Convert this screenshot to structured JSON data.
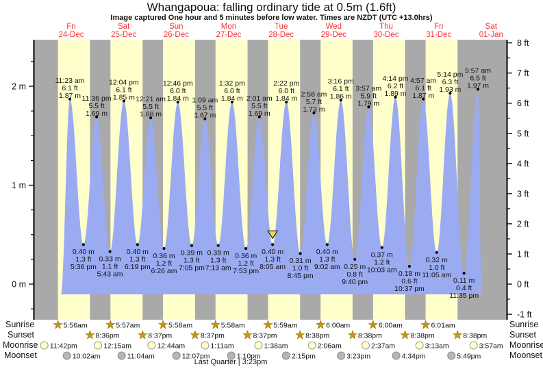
{
  "header": {
    "title": "Whangapoua: falling  ordinary tide at 0.5m (1.6ft)",
    "subtitle": "Image captured One hour and 5 minutes before low water. Times are NZDT (UTC +13.0hrs)"
  },
  "row_labels": {
    "sunrise": "Sunrise",
    "sunset": "Sunset",
    "moonrise": "Moonrise",
    "moonset": "Moonset"
  },
  "footer": {
    "moon_phase": "Last Quarter | 3:23pm"
  },
  "chart_data": {
    "type": "area",
    "title": "Whangapoua: falling  ordinary tide at 0.5m (1.6ft)",
    "subtitle": "Image captured One hour and 5 minutes before low water. Times are NZDT (UTC +13.0hrs)",
    "time_reference": "t = hours since 24-Dec 00:00",
    "x_axis": {
      "days": [
        {
          "dow": "Fri",
          "date": "24-Dec"
        },
        {
          "dow": "Sat",
          "date": "25-Dec"
        },
        {
          "dow": "Sun",
          "date": "26-Dec"
        },
        {
          "dow": "Mon",
          "date": "27-Dec"
        },
        {
          "dow": "Tue",
          "date": "28-Dec"
        },
        {
          "dow": "Wed",
          "date": "29-Dec"
        },
        {
          "dow": "Thu",
          "date": "30-Dec"
        },
        {
          "dow": "Fri",
          "date": "31-Dec"
        },
        {
          "dow": "Sat",
          "date": "01-Jan"
        }
      ]
    },
    "y_axis_left": {
      "unit": "m",
      "ticks": [
        2,
        1,
        0
      ],
      "tick_labels": [
        "2 m",
        "1 m",
        "0 m"
      ]
    },
    "y_axis_right": {
      "unit": "ft",
      "ticks": [
        8,
        7,
        6,
        5,
        4,
        3,
        2,
        1,
        0,
        -1
      ],
      "tick_labels": [
        "8 ft",
        "7 ft",
        "6 ft",
        "5 ft",
        "4 ft",
        "3 ft",
        "2 ft",
        "1 ft",
        "0 ft",
        "-1 ft"
      ]
    },
    "events": [
      {
        "kind": "high",
        "t": 11.38,
        "m": 1.87,
        "lines": [
          "11:23 am",
          "6.1 ft",
          "1.87 m"
        ]
      },
      {
        "kind": "low",
        "t": 17.6,
        "m": 0.4,
        "lines": [
          "0.40 m",
          "1.3 ft",
          "5:36 pm"
        ]
      },
      {
        "kind": "high",
        "t": 23.6,
        "m": 1.69,
        "lines": [
          "11:36 pm",
          "5.5 ft",
          "1.69 m"
        ]
      },
      {
        "kind": "low",
        "t": 29.72,
        "m": 0.33,
        "lines": [
          "0.33 m",
          "1.1 ft",
          "5:43 am"
        ]
      },
      {
        "kind": "high",
        "t": 36.07,
        "m": 1.85,
        "lines": [
          "12:04 pm",
          "6.1 ft",
          "1.85 m"
        ]
      },
      {
        "kind": "low",
        "t": 42.32,
        "m": 0.4,
        "lines": [
          "0.40 m",
          "1.3 ft",
          "6:19 pm"
        ]
      },
      {
        "kind": "high",
        "t": 48.35,
        "m": 1.68,
        "lines": [
          "12:21 am",
          "5.5 ft",
          "1.68 m"
        ]
      },
      {
        "kind": "low",
        "t": 54.43,
        "m": 0.36,
        "lines": [
          "0.36 m",
          "1.2 ft",
          "6:26 am"
        ]
      },
      {
        "kind": "high",
        "t": 60.77,
        "m": 1.84,
        "lines": [
          "12:46 pm",
          "6.0 ft",
          "1.84 m"
        ]
      },
      {
        "kind": "low",
        "t": 67.08,
        "m": 0.39,
        "lines": [
          "0.39 m",
          "1.3 ft",
          "7:05 pm"
        ]
      },
      {
        "kind": "high",
        "t": 73.15,
        "m": 1.67,
        "lines": [
          "1:09 am",
          "5.5 ft",
          "1.67 m"
        ]
      },
      {
        "kind": "low",
        "t": 79.22,
        "m": 0.39,
        "lines": [
          "0.39 m",
          "1.3 ft",
          "7:13 am"
        ]
      },
      {
        "kind": "high",
        "t": 85.53,
        "m": 1.84,
        "lines": [
          "1:32 pm",
          "6.0 ft",
          "1.84 m"
        ]
      },
      {
        "kind": "low",
        "t": 91.88,
        "m": 0.36,
        "lines": [
          "0.36 m",
          "1.2 ft",
          "7:53 pm"
        ]
      },
      {
        "kind": "high",
        "t": 98.02,
        "m": 1.69,
        "lines": [
          "2:01 am",
          "5.5 ft",
          "1.69 m"
        ]
      },
      {
        "kind": "low",
        "t": 104.08,
        "m": 0.4,
        "lines": [
          "0.40 m",
          "1.3 ft",
          "8:05 am"
        ],
        "current_marker": true
      },
      {
        "kind": "high",
        "t": 110.37,
        "m": 1.84,
        "lines": [
          "2:22 pm",
          "6.0 ft",
          "1.84 m"
        ]
      },
      {
        "kind": "low",
        "t": 116.75,
        "m": 0.31,
        "lines": [
          "0.31 m",
          "1.0 ft",
          "8:45 pm"
        ]
      },
      {
        "kind": "high",
        "t": 122.97,
        "m": 1.73,
        "lines": [
          "2:58 am",
          "5.7 ft",
          "1.73 m"
        ]
      },
      {
        "kind": "low",
        "t": 129.03,
        "m": 0.4,
        "lines": [
          "0.40 m",
          "1.3 ft",
          "9:02 am"
        ]
      },
      {
        "kind": "high",
        "t": 135.27,
        "m": 1.86,
        "lines": [
          "3:16 pm",
          "6.1 ft",
          "1.86 m"
        ]
      },
      {
        "kind": "low",
        "t": 141.67,
        "m": 0.25,
        "lines": [
          "0.25 m",
          "0.8 ft",
          "9:40 pm"
        ]
      },
      {
        "kind": "high",
        "t": 147.95,
        "m": 1.79,
        "lines": [
          "3:57 am",
          "5.9 ft",
          "1.79 m"
        ]
      },
      {
        "kind": "low",
        "t": 154.05,
        "m": 0.37,
        "lines": [
          "0.37 m",
          "1.2 ft",
          "10:03 am"
        ]
      },
      {
        "kind": "high",
        "t": 160.23,
        "m": 1.89,
        "lines": [
          "4:14 pm",
          "6.2 ft",
          "1.89 m"
        ]
      },
      {
        "kind": "low",
        "t": 166.62,
        "m": 0.18,
        "lines": [
          "0.18 m",
          "0.6 ft",
          "10:37 pm"
        ]
      },
      {
        "kind": "high",
        "t": 172.95,
        "m": 1.87,
        "lines": [
          "4:57 am",
          "6.1 ft",
          "1.87 m"
        ]
      },
      {
        "kind": "low",
        "t": 179.08,
        "m": 0.32,
        "lines": [
          "0.32 m",
          "1.0 ft",
          "11:05 am"
        ]
      },
      {
        "kind": "high",
        "t": 185.23,
        "m": 1.93,
        "lines": [
          "5:14 pm",
          "6.3 ft",
          "1.93 m"
        ]
      },
      {
        "kind": "low",
        "t": 191.58,
        "m": 0.11,
        "lines": [
          "0.11 m",
          "0.4 ft",
          "11:35 pm"
        ]
      },
      {
        "kind": "high",
        "t": 197.95,
        "m": 1.97,
        "lines": [
          "5:57 am",
          "6.5 ft",
          "1.97 m"
        ]
      }
    ],
    "sun_moon": {
      "sunrise": [
        {
          "time": "5:56am",
          "t": 5.93
        },
        {
          "time": "5:57am",
          "t": 29.95
        },
        {
          "time": "5:58am",
          "t": 53.97
        },
        {
          "time": "5:58am",
          "t": 77.97
        },
        {
          "time": "5:59am",
          "t": 101.98
        },
        {
          "time": "6:00am",
          "t": 126.0
        },
        {
          "time": "6:00am",
          "t": 150.0
        },
        {
          "time": "6:01am",
          "t": 174.02
        }
      ],
      "sunset": [
        {
          "time": "8:36pm",
          "t": 20.6
        },
        {
          "time": "8:37pm",
          "t": 44.62
        },
        {
          "time": "8:37pm",
          "t": 68.62
        },
        {
          "time": "8:37pm",
          "t": 92.62
        },
        {
          "time": "8:38pm",
          "t": 116.63
        },
        {
          "time": "8:38pm",
          "t": 140.63
        },
        {
          "time": "8:38pm",
          "t": 164.63
        },
        {
          "time": "8:38pm",
          "t": 188.63
        }
      ],
      "moonrise": [
        {
          "time": "11:42pm",
          "t": -0.3
        },
        {
          "time": "12:15am",
          "t": 24.25
        },
        {
          "time": "12:44am",
          "t": 48.73
        },
        {
          "time": "1:11am",
          "t": 73.18
        },
        {
          "time": "1:38am",
          "t": 97.63
        },
        {
          "time": "2:06am",
          "t": 122.1
        },
        {
          "time": "2:37am",
          "t": 146.62
        },
        {
          "time": "3:13am",
          "t": 171.22
        },
        {
          "time": "3:57am",
          "t": 195.95
        }
      ],
      "moonset": [
        {
          "time": "10:02am",
          "t": 10.03
        },
        {
          "time": "11:04am",
          "t": 35.07
        },
        {
          "time": "12:07pm",
          "t": 60.12
        },
        {
          "time": "1:10pm",
          "t": 85.17
        },
        {
          "time": "2:15pm",
          "t": 110.25
        },
        {
          "time": "3:23pm",
          "t": 135.38
        },
        {
          "time": "4:34pm",
          "t": 160.57
        },
        {
          "time": "5:49pm",
          "t": 185.82
        }
      ]
    },
    "moon_phase": "Last Quarter | 3:23pm",
    "colors": {
      "day_band": "#ffffcc",
      "night_band": "#a9a9a9",
      "tide_fill": "#9aabf2",
      "day_label_red": "#fb3131",
      "sun_star": "#c79810",
      "moonrise_fill": "#ffffc8",
      "moonset_fill": "#b6b6b6",
      "marker_yellow": "#f6d94a",
      "axis_black": "#000000"
    }
  }
}
